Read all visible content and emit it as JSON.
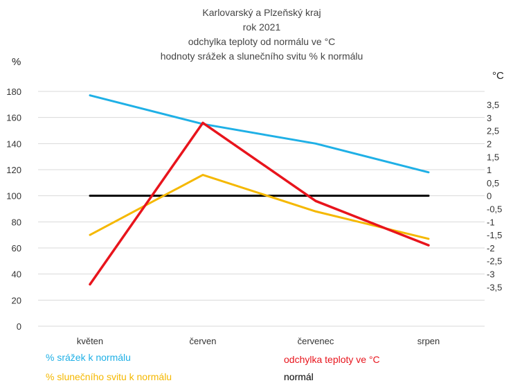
{
  "chart_data": {
    "type": "line",
    "title": [
      "Karlovarský a Plzeňský kraj",
      "rok 2021",
      "odchylka teploty od normálu ve °C",
      "hodnoty srážek a slunečního svitu  % k normálu"
    ],
    "categories": [
      "květen",
      "červen",
      "červenec",
      "srpen"
    ],
    "left_axis": {
      "unit": "%",
      "ylim": [
        0,
        180
      ],
      "ticks": [
        "0",
        "20",
        "40",
        "60",
        "80",
        "100",
        "120",
        "140",
        "160",
        "180"
      ]
    },
    "right_axis": {
      "unit": "°C",
      "ticks": [
        "3,5",
        "3",
        "2,5",
        "2",
        "1,5",
        "1",
        "0,5",
        "0",
        "-0,5",
        "-1",
        "-1,5",
        "-2",
        "-2,5",
        "-3",
        "-3,5"
      ]
    },
    "grid": true,
    "series": [
      {
        "name": "% srážek k normálu",
        "axis": "left",
        "color": "#1fb0e6",
        "values": [
          177,
          155,
          140,
          118
        ]
      },
      {
        "name": "% slunečního svitu k normálu",
        "axis": "left",
        "color": "#f5b800",
        "values": [
          70,
          116,
          88,
          67
        ]
      },
      {
        "name": "normál",
        "axis": "left",
        "color": "#000000",
        "values": [
          100,
          100,
          100,
          100
        ]
      },
      {
        "name": "odchylka teploty ve °C",
        "axis": "right",
        "color": "#e8141c",
        "values": [
          -3.4,
          2.8,
          -0.2,
          -1.9
        ]
      }
    ]
  }
}
